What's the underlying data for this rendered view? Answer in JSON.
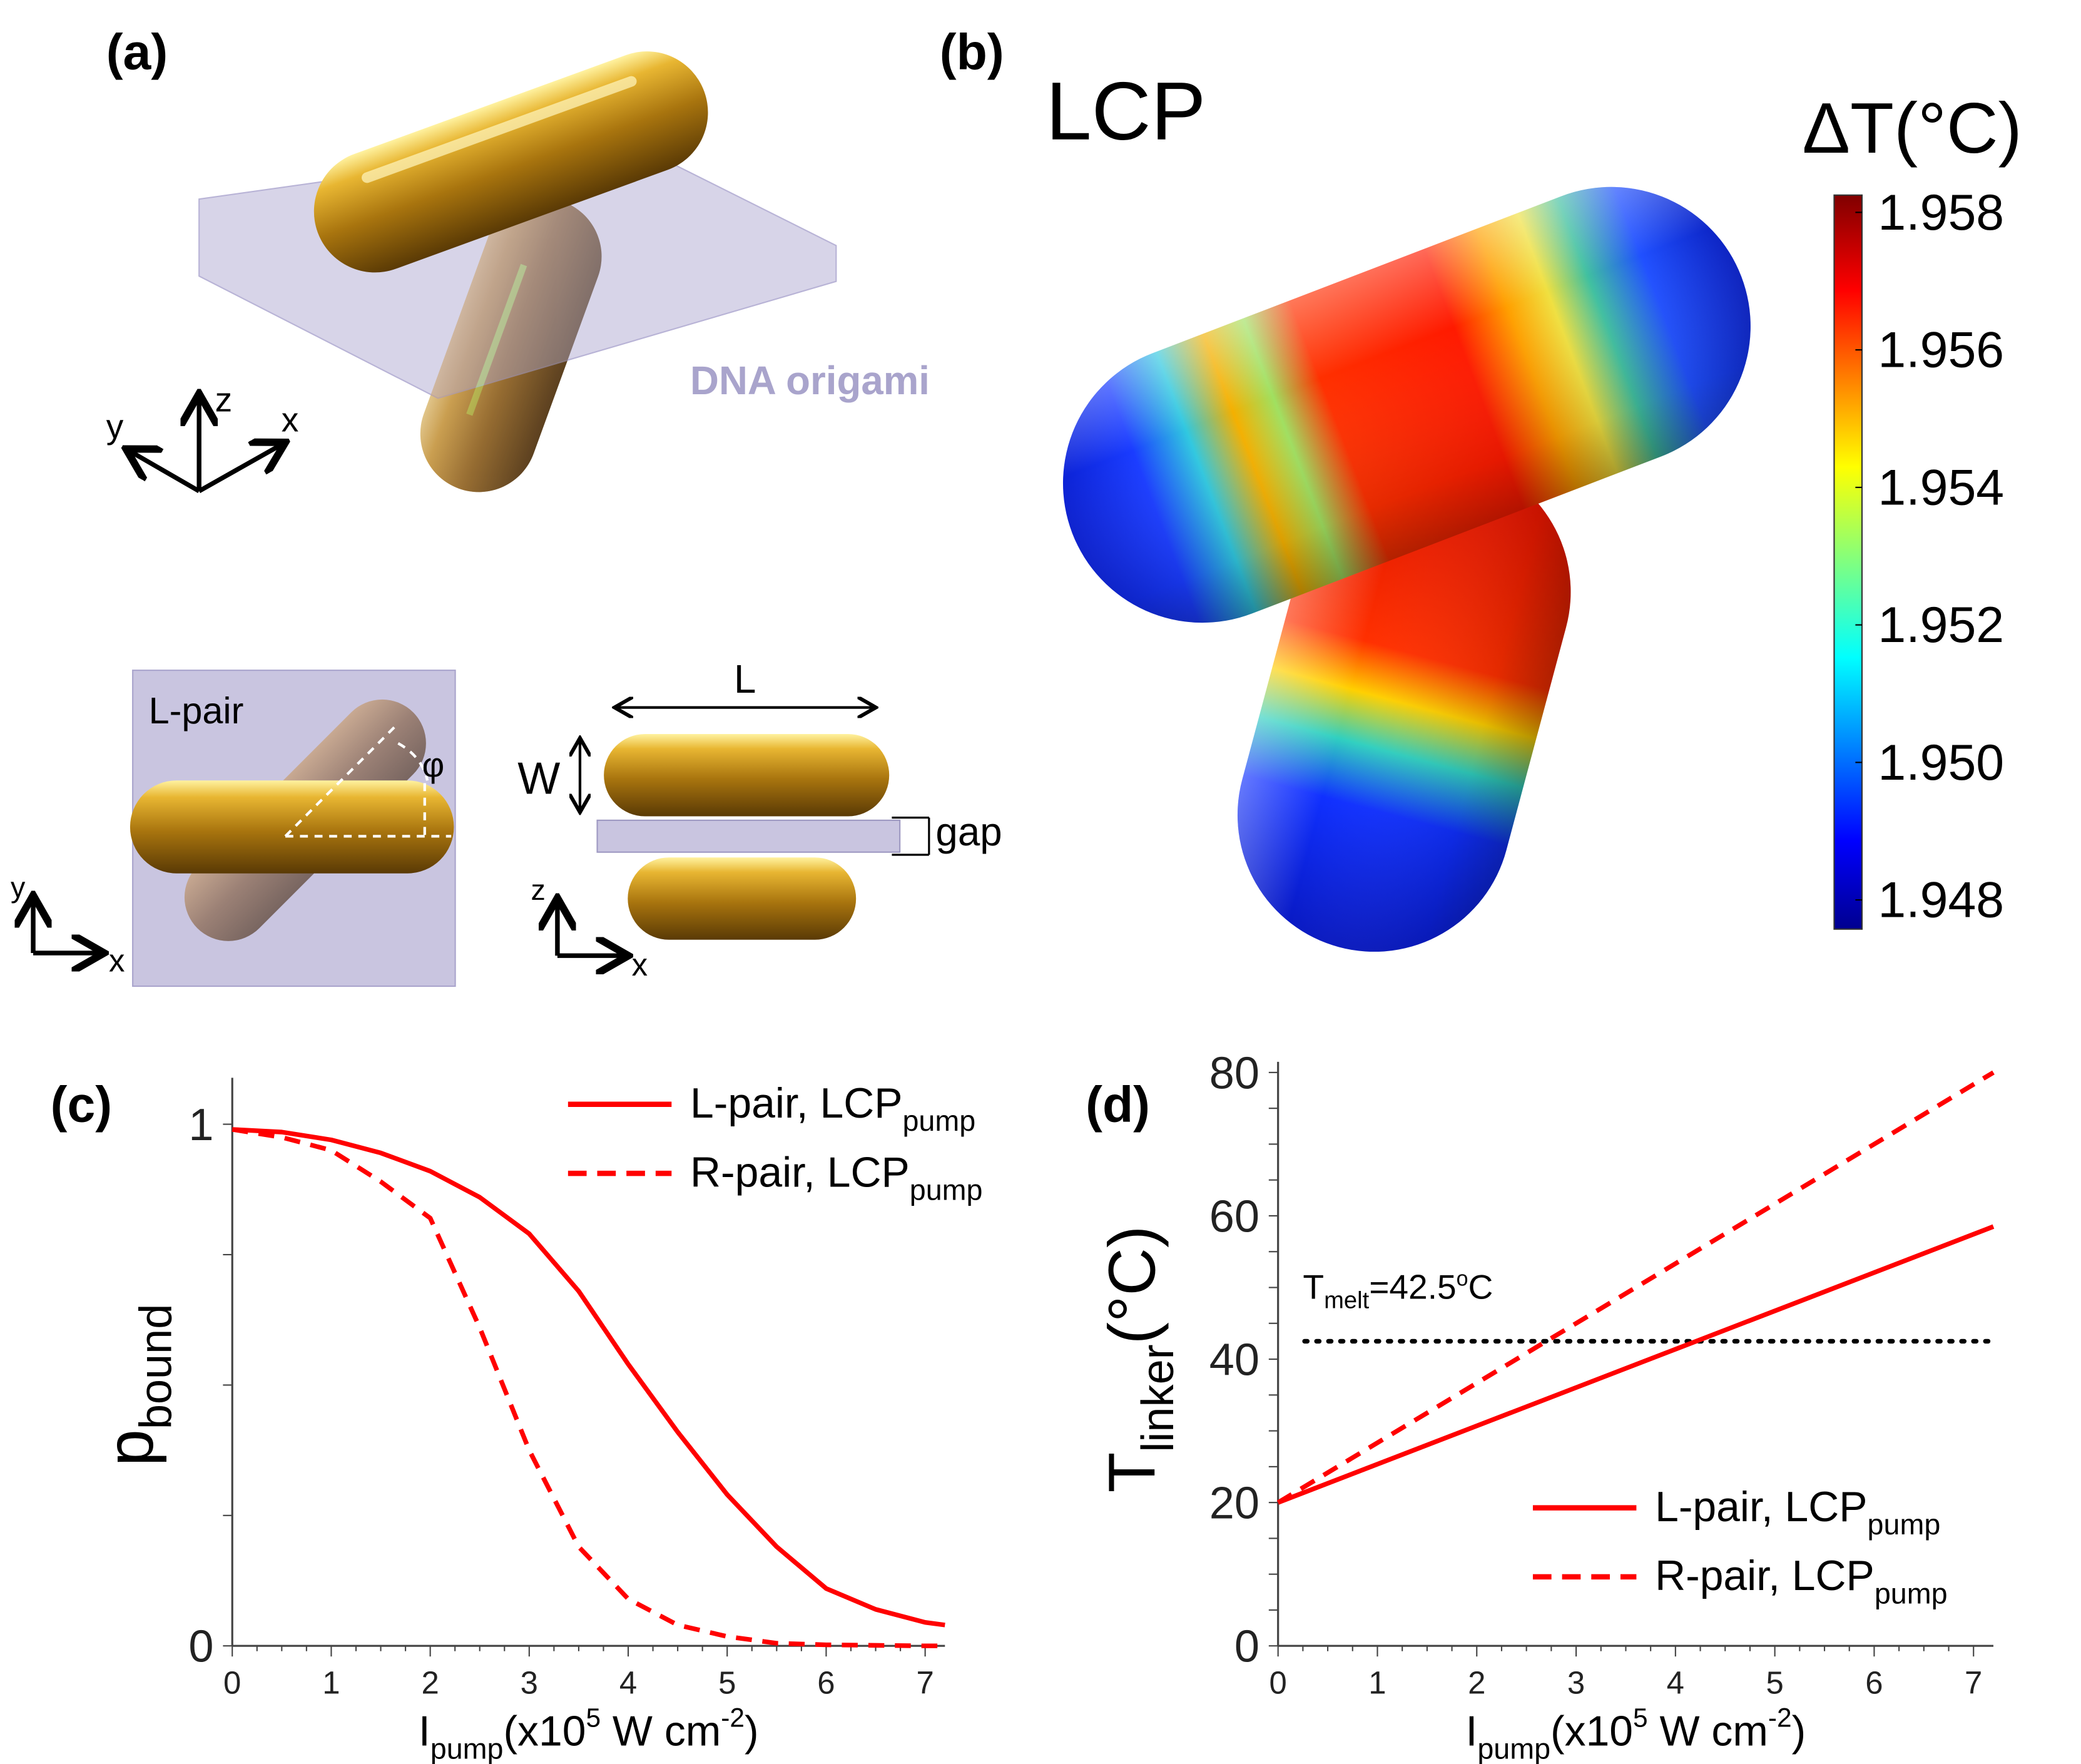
{
  "panel_labels": {
    "a": "(a)",
    "b": "(b)",
    "c": "(c)",
    "d": "(d)"
  },
  "panel_a": {
    "origami_label": "DNA origami",
    "axis_x": "x",
    "axis_y": "y",
    "axis_z": "z",
    "lpair_label": "L-pair",
    "phi_label": "φ",
    "length_label": "L",
    "width_label": "W",
    "gap_label": "gap",
    "colors": {
      "gold": "#c8961e",
      "origami": "#c9c5e0"
    }
  },
  "panel_b": {
    "title": "LCP",
    "colorbar_title": "ΔT(°C)",
    "colorbar_ticks": [
      "1.958",
      "1.956",
      "1.954",
      "1.952",
      "1.950",
      "1.948"
    ]
  },
  "chart_data": [
    {
      "type": "line",
      "panel": "c",
      "xlabel_main": "I",
      "xlabel_sub": "pump",
      "xlabel_rest": "(x10",
      "xlabel_sup": "5",
      "xlabel_unit": " W cm",
      "xlabel_sup2": "-2",
      "xlabel_close": ")",
      "ylabel_main": "p",
      "ylabel_sub": "bound",
      "xlim": [
        0,
        7.2
      ],
      "ylim": [
        0,
        1
      ],
      "xticks": [
        0,
        1,
        2,
        3,
        4,
        5,
        6,
        7
      ],
      "yticks": [
        0,
        1
      ],
      "legend_position": "top-right",
      "series": [
        {
          "name": "L-pair, LCP",
          "name_sub": "pump",
          "style": "solid",
          "color": "#ff0000",
          "x": [
            0,
            0.5,
            1,
            1.5,
            2,
            2.5,
            3,
            3.5,
            4,
            4.5,
            5,
            5.5,
            6,
            6.5,
            7,
            7.2
          ],
          "y": [
            0.99,
            0.985,
            0.97,
            0.945,
            0.91,
            0.86,
            0.79,
            0.68,
            0.54,
            0.41,
            0.29,
            0.19,
            0.11,
            0.07,
            0.045,
            0.04
          ]
        },
        {
          "name": "R-pair, LCP",
          "name_sub": "pump",
          "style": "dashed",
          "color": "#ff0000",
          "x": [
            0,
            0.5,
            1,
            1.5,
            2,
            2.5,
            3,
            3.5,
            4,
            4.5,
            5,
            5.5,
            6,
            6.5,
            7,
            7.2
          ],
          "y": [
            0.99,
            0.975,
            0.95,
            0.89,
            0.82,
            0.61,
            0.375,
            0.19,
            0.09,
            0.04,
            0.018,
            0.005,
            0.002,
            0.001,
            0.0,
            0.0
          ]
        }
      ]
    },
    {
      "type": "line",
      "panel": "d",
      "xlabel_main": "I",
      "xlabel_sub": "pump",
      "xlabel_rest": "(x10",
      "xlabel_sup": "5",
      "xlabel_unit": " W cm",
      "xlabel_sup2": "-2",
      "xlabel_close": ")",
      "ylabel_main": "T",
      "ylabel_sub": "linker",
      "ylabel_unit": "(°C)",
      "xlim": [
        0,
        7.2
      ],
      "ylim": [
        0,
        80
      ],
      "xticks": [
        0,
        1,
        2,
        3,
        4,
        5,
        6,
        7
      ],
      "yticks": [
        0,
        20,
        40,
        60,
        80
      ],
      "legend_position": "bottom-right",
      "annotation": {
        "main": "T",
        "sub": "melt",
        "rest": "=42.5",
        "sup": "o",
        "end": "C",
        "value": 42.5,
        "style": "dotted",
        "color": "#000000"
      },
      "series": [
        {
          "name": "L-pair, LCP",
          "name_sub": "pump",
          "style": "solid",
          "color": "#ff0000",
          "x": [
            0,
            7.2
          ],
          "y": [
            20,
            58.5
          ]
        },
        {
          "name": "R-pair, LCP",
          "name_sub": "pump",
          "style": "dashed",
          "color": "#ff0000",
          "x": [
            0,
            7.2
          ],
          "y": [
            20,
            80
          ]
        }
      ]
    }
  ]
}
